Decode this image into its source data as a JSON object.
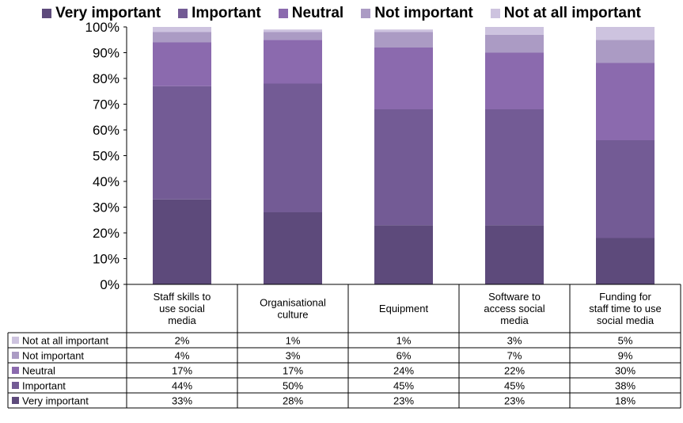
{
  "colors": {
    "very_important": "#5d4a7b",
    "important": "#735b95",
    "neutral": "#8b6aae",
    "not_important": "#ab9bc4",
    "not_at_all_important": "#cdc3df",
    "grid": "#000000"
  },
  "legend": [
    {
      "key": "very_important",
      "label": "Very important"
    },
    {
      "key": "important",
      "label": "Important"
    },
    {
      "key": "neutral",
      "label": "Neutral"
    },
    {
      "key": "not_important",
      "label": "Not important"
    },
    {
      "key": "not_at_all_important",
      "label": "Not at all important"
    }
  ],
  "chart_data": {
    "type": "bar",
    "stacked": true,
    "percent": true,
    "title": "",
    "ylim": [
      0,
      100
    ],
    "yticks": [
      "0%",
      "10%",
      "20%",
      "30%",
      "40%",
      "50%",
      "60%",
      "70%",
      "80%",
      "90%",
      "100%"
    ],
    "categories": [
      [
        "Staff skills to",
        "use social",
        "media"
      ],
      [
        "Organisational",
        "culture"
      ],
      [
        "Equipment"
      ],
      [
        "Software to",
        "access social",
        "media"
      ],
      [
        "Funding for",
        "staff time to use",
        "social media"
      ]
    ],
    "series": [
      {
        "key": "very_important",
        "name": "Very important",
        "values": [
          33,
          28,
          23,
          23,
          18
        ],
        "labels": [
          "33%",
          "28%",
          "23%",
          "23%",
          "18%"
        ]
      },
      {
        "key": "important",
        "name": "Important",
        "values": [
          44,
          50,
          45,
          45,
          38
        ],
        "labels": [
          "44%",
          "50%",
          "45%",
          "45%",
          "38%"
        ]
      },
      {
        "key": "neutral",
        "name": "Neutral",
        "values": [
          17,
          17,
          24,
          22,
          30
        ],
        "labels": [
          "17%",
          "17%",
          "24%",
          "22%",
          "30%"
        ]
      },
      {
        "key": "not_important",
        "name": "Not important",
        "values": [
          4,
          3,
          6,
          7,
          9
        ],
        "labels": [
          "4%",
          "3%",
          "6%",
          "7%",
          "9%"
        ]
      },
      {
        "key": "not_at_all_important",
        "name": "Not at all important",
        "values": [
          2,
          1,
          1,
          3,
          5
        ],
        "labels": [
          "2%",
          "1%",
          "1%",
          "3%",
          "5%"
        ]
      }
    ],
    "table_row_order": [
      "not_at_all_important",
      "not_important",
      "neutral",
      "important",
      "very_important"
    ]
  }
}
